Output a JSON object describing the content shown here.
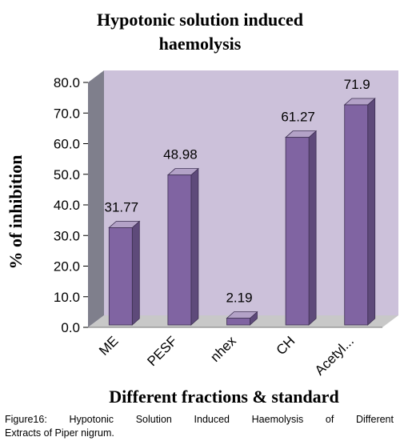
{
  "chart_data": {
    "type": "bar",
    "title": [
      "Hypotonic solution induced",
      "haemolysis"
    ],
    "xlabel": "Different fractions & standard",
    "ylabel": "% of inhibition",
    "categories": [
      "ME",
      "PESF",
      "nhex",
      "CH",
      "Acetyl..."
    ],
    "values": [
      31.77,
      48.98,
      2.19,
      61.27,
      71.9
    ],
    "data_labels": [
      "31.77",
      "48.98",
      "2.19",
      "61.27",
      "71.9"
    ],
    "y_ticks": [
      "0.0",
      "10.0",
      "20.0",
      "30.0",
      "40.0",
      "50.0",
      "60.0",
      "70.0",
      "80.0"
    ],
    "ylim": [
      0,
      80
    ],
    "grid": false,
    "legend": "none",
    "style": "3d",
    "colors": {
      "bar_front": "#8064A2",
      "bar_side": "#5E4A7A",
      "bar_top": "#B3A2C7",
      "back_wall": "#CCC1DA",
      "side_wall": "#7F7F8C",
      "floor": "#C8C8C8"
    }
  },
  "caption": [
    "Figure16: Hypotonic Solution Induced Haemolysis of Different",
    "Extracts of Piper nigrum."
  ]
}
